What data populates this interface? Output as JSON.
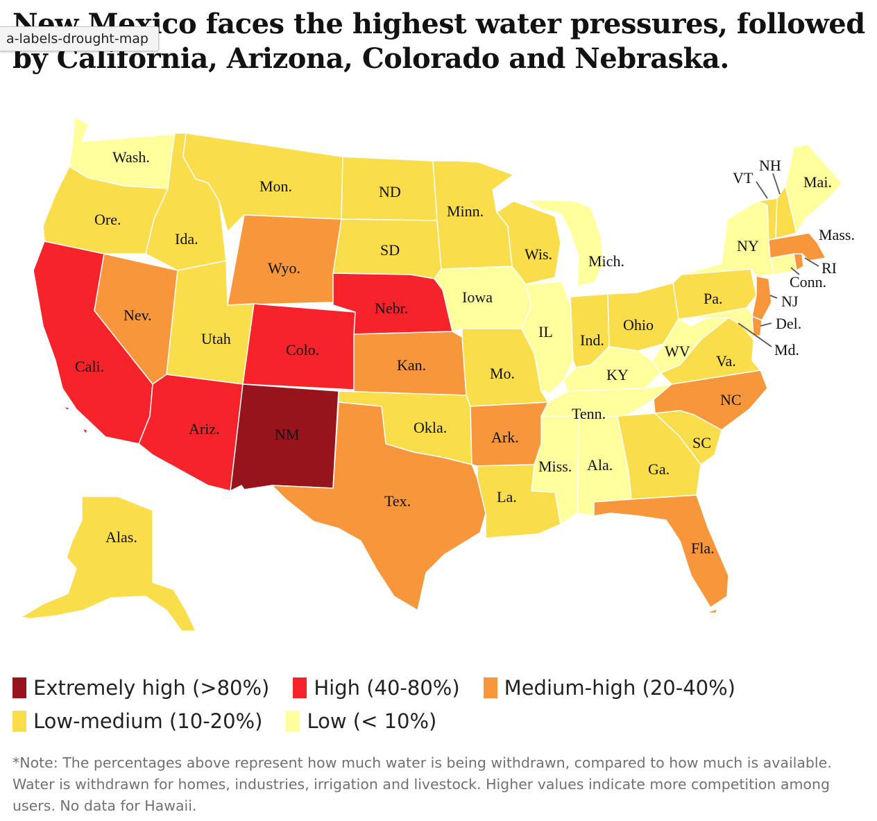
{
  "headline": "New Mexico faces the highest water pressures, followed by California, Arizona, Colorado and Nebraska.",
  "tooltip": "a-labels-drought-map",
  "colors": {
    "extremely_high": "#98141d",
    "high": "#f6232b",
    "medium_high": "#f7963a",
    "low_medium": "#fadd4b",
    "low": "#ffff9e"
  },
  "legend": [
    {
      "key": "extremely_high",
      "label": "Extremely high (>80%)"
    },
    {
      "key": "high",
      "label": "High (40-80%)"
    },
    {
      "key": "medium_high",
      "label": "Medium-high (20-40%)"
    },
    {
      "key": "low_medium",
      "label": "Low-medium (10-20%)"
    },
    {
      "key": "low",
      "label": "Low (< 10%)"
    }
  ],
  "states": [
    {
      "id": "wa",
      "label": "Wash.",
      "cat": "low"
    },
    {
      "id": "or",
      "label": "Ore.",
      "cat": "low_medium"
    },
    {
      "id": "ca",
      "label": "Cali.",
      "cat": "high"
    },
    {
      "id": "id",
      "label": "Ida.",
      "cat": "low_medium"
    },
    {
      "id": "nv",
      "label": "Nev.",
      "cat": "medium_high"
    },
    {
      "id": "mt",
      "label": "Mon.",
      "cat": "low_medium"
    },
    {
      "id": "wy",
      "label": "Wyo.",
      "cat": "medium_high"
    },
    {
      "id": "ut",
      "label": "Utah",
      "cat": "low_medium"
    },
    {
      "id": "az",
      "label": "Ariz.",
      "cat": "high"
    },
    {
      "id": "co",
      "label": "Colo.",
      "cat": "high"
    },
    {
      "id": "nm",
      "label": "NM",
      "cat": "extremely_high"
    },
    {
      "id": "nd",
      "label": "ND",
      "cat": "low_medium"
    },
    {
      "id": "sd",
      "label": "SD",
      "cat": "low_medium"
    },
    {
      "id": "ne",
      "label": "Nebr.",
      "cat": "high"
    },
    {
      "id": "ks",
      "label": "Kan.",
      "cat": "medium_high"
    },
    {
      "id": "ok",
      "label": "Okla.",
      "cat": "low_medium"
    },
    {
      "id": "tx",
      "label": "Tex.",
      "cat": "medium_high"
    },
    {
      "id": "mn",
      "label": "Minn.",
      "cat": "low_medium"
    },
    {
      "id": "ia",
      "label": "Iowa",
      "cat": "low"
    },
    {
      "id": "mo",
      "label": "Mo.",
      "cat": "low_medium"
    },
    {
      "id": "ar",
      "label": "Ark.",
      "cat": "medium_high"
    },
    {
      "id": "la",
      "label": "La.",
      "cat": "low_medium"
    },
    {
      "id": "wi",
      "label": "Wis.",
      "cat": "low_medium"
    },
    {
      "id": "il",
      "label": "IL",
      "cat": "low"
    },
    {
      "id": "mi",
      "label": "Mich.",
      "cat": "low"
    },
    {
      "id": "in",
      "label": "Ind.",
      "cat": "low_medium"
    },
    {
      "id": "oh",
      "label": "Ohio",
      "cat": "low_medium"
    },
    {
      "id": "ky",
      "label": "KY",
      "cat": "low"
    },
    {
      "id": "tn",
      "label": "Tenn.",
      "cat": "low"
    },
    {
      "id": "ms",
      "label": "Miss.",
      "cat": "low"
    },
    {
      "id": "al",
      "label": "Ala.",
      "cat": "low"
    },
    {
      "id": "ga",
      "label": "Ga.",
      "cat": "low_medium"
    },
    {
      "id": "fl",
      "label": "Fla.",
      "cat": "medium_high"
    },
    {
      "id": "sc",
      "label": "SC",
      "cat": "low_medium"
    },
    {
      "id": "nc",
      "label": "NC",
      "cat": "medium_high"
    },
    {
      "id": "va",
      "label": "Va.",
      "cat": "low_medium"
    },
    {
      "id": "wv",
      "label": "WV",
      "cat": "low"
    },
    {
      "id": "pa",
      "label": "Pa.",
      "cat": "low_medium"
    },
    {
      "id": "ny",
      "label": "NY",
      "cat": "low"
    },
    {
      "id": "vt",
      "label": "VT",
      "cat": "low_medium"
    },
    {
      "id": "nh",
      "label": "NH",
      "cat": "low_medium"
    },
    {
      "id": "me",
      "label": "Mai.",
      "cat": "low"
    },
    {
      "id": "ma",
      "label": "Mass.",
      "cat": "medium_high"
    },
    {
      "id": "ri",
      "label": "RI",
      "cat": "medium_high"
    },
    {
      "id": "ct",
      "label": "Conn.",
      "cat": "low"
    },
    {
      "id": "nj",
      "label": "NJ",
      "cat": "medium_high"
    },
    {
      "id": "de",
      "label": "Del.",
      "cat": "medium_high"
    },
    {
      "id": "md",
      "label": "Md.",
      "cat": "low"
    },
    {
      "id": "ak",
      "label": "Alas.",
      "cat": "low_medium"
    }
  ],
  "note": "*Note: The percentages above represent how much water is being withdrawn, compared to how much is available. Water is withdrawn for homes, industries, irrigation and livestock. Higher values indicate more competition among users. No data for Hawaii."
}
